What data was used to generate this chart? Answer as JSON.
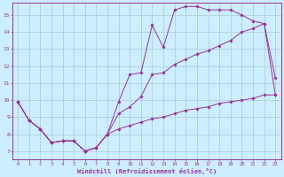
{
  "xlabel": "Windchill (Refroidissement éolien,°C)",
  "xlim": [
    -0.5,
    23.5
  ],
  "ylim": [
    6.5,
    15.7
  ],
  "xticks": [
    0,
    1,
    2,
    3,
    4,
    5,
    6,
    7,
    8,
    9,
    10,
    11,
    12,
    13,
    14,
    15,
    16,
    17,
    18,
    19,
    20,
    21,
    22,
    23
  ],
  "yticks": [
    7,
    8,
    9,
    10,
    11,
    12,
    13,
    14,
    15
  ],
  "background_color": "#cceeff",
  "grid_color": "#aacccc",
  "line_color": "#993399",
  "line1_x": [
    0,
    1,
    2,
    3,
    4,
    5,
    6,
    7,
    8,
    9,
    10,
    11,
    12,
    13,
    14,
    15,
    16,
    17,
    18,
    19,
    20,
    21,
    22,
    23
  ],
  "line1_y": [
    9.9,
    8.8,
    8.3,
    7.5,
    7.6,
    7.6,
    7.0,
    7.2,
    8.0,
    9.9,
    11.5,
    11.6,
    14.4,
    13.1,
    15.3,
    15.5,
    15.5,
    15.3,
    15.3,
    15.3,
    15.0,
    14.65,
    14.5,
    11.3
  ],
  "line2_x": [
    0,
    1,
    2,
    3,
    4,
    5,
    6,
    7,
    8,
    9,
    10,
    11,
    12,
    13,
    14,
    15,
    16,
    17,
    18,
    19,
    20,
    21,
    22,
    23
  ],
  "line2_y": [
    9.9,
    8.8,
    8.3,
    7.5,
    7.6,
    7.6,
    7.0,
    7.2,
    8.0,
    9.2,
    9.6,
    10.2,
    11.5,
    11.6,
    12.1,
    12.4,
    12.7,
    12.9,
    13.2,
    13.5,
    14.0,
    14.2,
    14.5,
    10.3
  ],
  "line3_x": [
    0,
    1,
    2,
    3,
    4,
    5,
    6,
    7,
    8,
    9,
    10,
    11,
    12,
    13,
    14,
    15,
    16,
    17,
    18,
    19,
    20,
    21,
    22,
    23
  ],
  "line3_y": [
    9.9,
    8.8,
    8.3,
    7.5,
    7.6,
    7.6,
    7.0,
    7.2,
    8.0,
    8.3,
    8.5,
    8.7,
    8.9,
    9.0,
    9.2,
    9.4,
    9.5,
    9.6,
    9.8,
    9.9,
    10.0,
    10.1,
    10.3,
    10.3
  ]
}
